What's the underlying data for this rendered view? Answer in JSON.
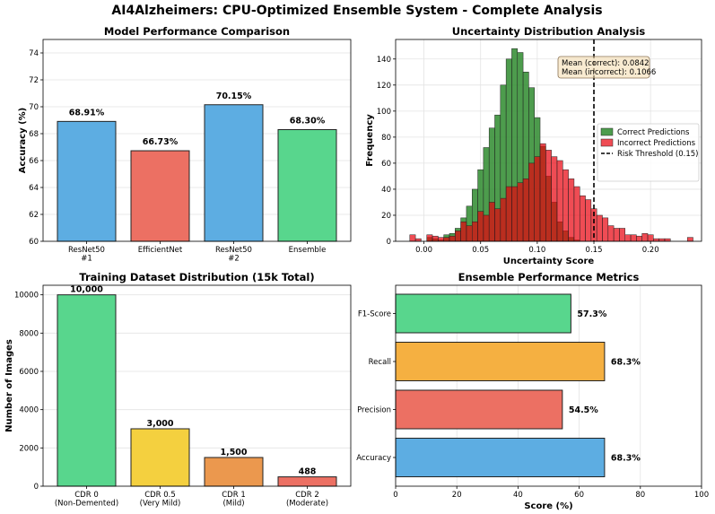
{
  "figure_title": "AI4Alzheimers: CPU-Optimized Ensemble System - Complete Analysis",
  "chart_data": [
    {
      "type": "bar",
      "title": "Model Performance Comparison",
      "xlabel": "",
      "ylabel": "Accuracy (%)",
      "ylim": [
        60,
        75
      ],
      "yticks": [
        60,
        62,
        64,
        66,
        68,
        70,
        72,
        74
      ],
      "grid": true,
      "categories": [
        [
          "ResNet50",
          "#1"
        ],
        [
          "EfficientNet"
        ],
        [
          "ResNet50",
          "#2"
        ],
        [
          "Ensemble"
        ]
      ],
      "values": [
        68.91,
        66.73,
        70.15,
        68.3
      ],
      "data_labels": [
        "68.91%",
        "66.73%",
        "70.15%",
        "68.30%"
      ],
      "colors": [
        "#5DADE2",
        "#EC7063",
        "#5DADE2",
        "#58D68D"
      ]
    },
    {
      "type": "histogram",
      "title": "Uncertainty Distribution Analysis",
      "xlabel": "Uncertainty Score",
      "ylabel": "Frequency",
      "xlim": [
        -0.025,
        0.245
      ],
      "ylim": [
        0,
        155
      ],
      "xticks": [
        0.0,
        0.05,
        0.1,
        0.15,
        0.2
      ],
      "xtick_labels": [
        "0.00",
        "0.05",
        "0.10",
        "0.15",
        "0.20"
      ],
      "yticks": [
        0,
        20,
        40,
        60,
        80,
        100,
        120,
        140
      ],
      "grid": true,
      "legend_position": "center-right",
      "bin_start": -0.0125,
      "bin_width": 0.005,
      "series": [
        {
          "name": "Correct Predictions",
          "color": "#2E8B2E",
          "values": [
            0,
            0,
            0,
            3,
            2,
            1,
            5,
            6,
            10,
            18,
            27,
            40,
            55,
            72,
            87,
            97,
            120,
            140,
            148,
            145,
            130,
            118,
            95,
            73,
            50,
            30,
            15,
            8,
            3,
            1,
            0,
            0,
            0,
            0,
            0,
            0,
            0,
            0,
            0,
            0,
            0,
            0,
            0,
            0,
            0,
            0,
            0,
            0,
            0,
            0,
            0
          ]
        },
        {
          "name": "Incorrect Predictions",
          "color": "#E8000B",
          "values": [
            5,
            2,
            0,
            5,
            4,
            3,
            3,
            4,
            8,
            15,
            12,
            15,
            23,
            20,
            30,
            25,
            33,
            42,
            42,
            45,
            48,
            60,
            65,
            75,
            70,
            65,
            62,
            55,
            48,
            42,
            35,
            32,
            25,
            20,
            18,
            12,
            10,
            10,
            5,
            5,
            4,
            6,
            5,
            2,
            2,
            2,
            0,
            0,
            0,
            3,
            0
          ]
        }
      ],
      "threshold": {
        "name": "Risk Threshold (0.15)",
        "x": 0.15
      },
      "annotation": [
        "Mean (correct): 0.0842",
        "Mean (incorrect): 0.1066"
      ]
    },
    {
      "type": "bar",
      "title": "Training Dataset Distribution (15k Total)",
      "xlabel": "",
      "ylabel": "Number of Images",
      "ylim": [
        0,
        10500
      ],
      "yticks": [
        0,
        2000,
        4000,
        6000,
        8000,
        10000
      ],
      "grid": true,
      "categories": [
        [
          "CDR 0",
          "(Non-Demented)"
        ],
        [
          "CDR 0.5",
          "(Very Mild)"
        ],
        [
          "CDR 1",
          "(Mild)"
        ],
        [
          "CDR 2",
          "(Moderate)"
        ]
      ],
      "values": [
        10000,
        3000,
        1500,
        488
      ],
      "data_labels": [
        "10,000",
        "3,000",
        "1,500",
        "488"
      ],
      "colors": [
        "#58D68D",
        "#F4D03F",
        "#EB984E",
        "#EC7063"
      ]
    },
    {
      "type": "barh",
      "title": "Ensemble Performance Metrics",
      "xlabel": "Score (%)",
      "ylabel": "",
      "xlim": [
        0,
        100
      ],
      "xticks": [
        0,
        20,
        40,
        60,
        80,
        100
      ],
      "grid": true,
      "categories": [
        "Accuracy",
        "Precision",
        "Recall",
        "F1-Score"
      ],
      "values": [
        68.3,
        54.5,
        68.3,
        57.3
      ],
      "data_labels": [
        "68.3%",
        "54.5%",
        "68.3%",
        "57.3%"
      ],
      "colors": [
        "#5DADE2",
        "#EC7063",
        "#F5B041",
        "#58D68D"
      ]
    }
  ]
}
